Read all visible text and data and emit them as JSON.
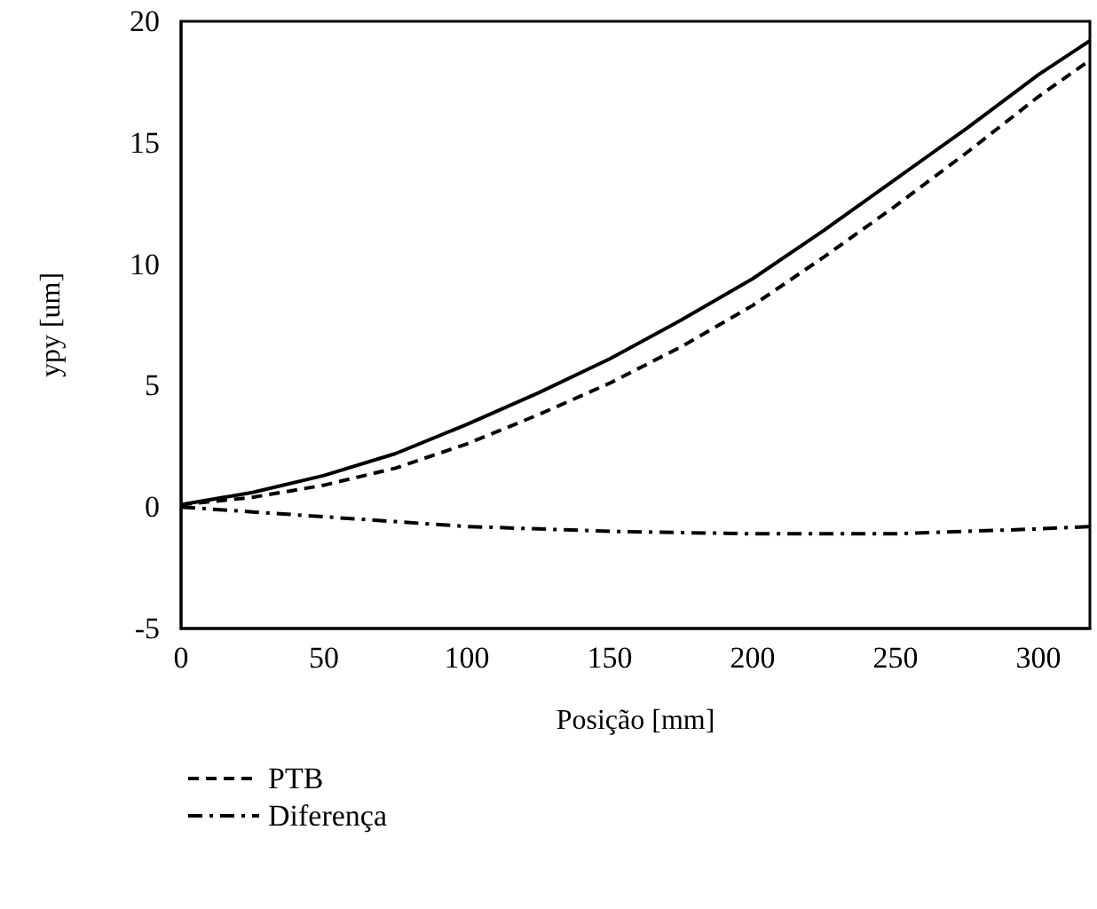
{
  "chart_data": {
    "type": "line",
    "xlabel": "Posição [mm]",
    "ylabel": "ypy [um]",
    "x": [
      0,
      25,
      50,
      75,
      100,
      125,
      150,
      175,
      200,
      225,
      250,
      275,
      300,
      318
    ],
    "series": [
      {
        "name": "PTB",
        "color": "#000000",
        "line_style": "dashed",
        "values": [
          0.1,
          0.4,
          0.9,
          1.6,
          2.6,
          3.8,
          5.1,
          6.6,
          8.3,
          10.3,
          12.4,
          14.6,
          16.9,
          18.4
        ]
      },
      {
        "color": "#000000",
        "line_style": "solid",
        "values": [
          0.1,
          0.6,
          1.3,
          2.2,
          3.4,
          4.7,
          6.1,
          7.7,
          9.4,
          11.4,
          13.5,
          15.6,
          17.8,
          19.2
        ]
      },
      {
        "name": "Diferença",
        "color": "#000000",
        "line_style": "dashdot",
        "values": [
          0,
          -0.2,
          -0.4,
          -0.6,
          -0.8,
          -0.9,
          -1.0,
          -1.05,
          -1.1,
          -1.1,
          -1.1,
          -1.0,
          -0.9,
          -0.8
        ]
      }
    ],
    "xlim": [
      0,
      318
    ],
    "xticks": [
      0,
      50,
      100,
      150,
      200,
      250,
      300
    ],
    "ylim": [
      -5,
      20
    ],
    "yticks": [
      -5,
      0,
      5,
      10,
      15,
      20
    ],
    "grid": false,
    "legend": "bottom left",
    "marker": "none"
  }
}
